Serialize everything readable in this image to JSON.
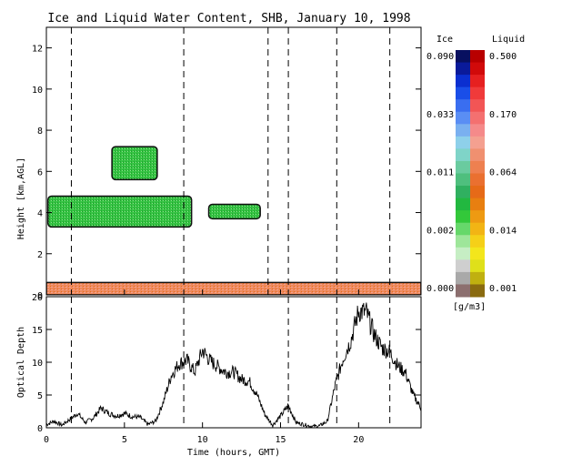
{
  "chart_data": [
    {
      "id": "water-content-panel",
      "type": "heatmap",
      "title": "Ice and Liquid Water Content, SHB, January 10, 1998",
      "xlabel": "",
      "ylabel": "Height [km,AGL]",
      "xlim": [
        0,
        24
      ],
      "ylim": [
        0,
        13
      ],
      "yticks": [
        "0",
        "2",
        "4",
        "6",
        "8",
        "10",
        "12"
      ],
      "unit_label": "[g/m3]",
      "colorbars": [
        {
          "name": "Ice",
          "tick_labels": [
            "0.090",
            "0.033",
            "0.011",
            "0.002",
            "0.000"
          ],
          "colors": [
            "#081060",
            "#0a1a9a",
            "#0b2fd0",
            "#1a4ee8",
            "#3a6ef0",
            "#5a8ef4",
            "#7ab0f0",
            "#8ed0ea",
            "#7fd4c8",
            "#6acb9f",
            "#4fbf7e",
            "#30b060",
            "#22b840",
            "#33c83a",
            "#66d86a",
            "#9ee69a",
            "#c6eec4",
            "#cfcfcf",
            "#a9a9a9",
            "#8c6f6f"
          ]
        },
        {
          "name": "Liquid",
          "tick_labels": [
            "0.500",
            "0.170",
            "0.064",
            "0.014",
            "0.001"
          ],
          "colors": [
            "#b80000",
            "#d10a0a",
            "#e62020",
            "#f03a3a",
            "#f25555",
            "#f47070",
            "#f58a8a",
            "#f4a090",
            "#f09070",
            "#ee8050",
            "#ea7030",
            "#e66a18",
            "#e87f10",
            "#ee9a12",
            "#f2b414",
            "#f5d018",
            "#f3e61c",
            "#dfe01a",
            "#c0b010",
            "#8a6b10"
          ]
        }
      ],
      "cloud_layers": [
        {
          "phase": "ice",
          "t_start": 0.1,
          "t_end": 9.3,
          "base_km": 3.3,
          "top_km": 4.8
        },
        {
          "phase": "ice",
          "t_start": 10.4,
          "t_end": 13.7,
          "base_km": 3.7,
          "top_km": 4.4
        },
        {
          "phase": "ice",
          "t_start": 4.2,
          "t_end": 7.1,
          "base_km": 5.6,
          "top_km": 7.2
        },
        {
          "phase": "liquid",
          "t_start": 0.0,
          "t_end": 24.0,
          "base_km": 0.0,
          "top_km": 0.6
        }
      ],
      "vertical_dashed_lines_hours": [
        1.6,
        8.8,
        14.2,
        15.5,
        18.6,
        22.0
      ]
    },
    {
      "id": "optical-depth-panel",
      "type": "line",
      "xlabel": "Time (hours, GMT)",
      "ylabel": "Optical Depth",
      "xlim": [
        0,
        24
      ],
      "ylim": [
        0,
        20
      ],
      "xticks": [
        "0",
        "5",
        "10",
        "15",
        "20"
      ],
      "yticks": [
        "0",
        "5",
        "10",
        "15",
        "20"
      ],
      "vertical_dashed_lines_hours": [
        1.6,
        8.8,
        15.5,
        18.6,
        22.0
      ],
      "series": [
        {
          "x": [
            0.0,
            0.5,
            1.0,
            1.5,
            2.0,
            2.5,
            3.0,
            3.5,
            4.0,
            4.5,
            5.0,
            5.5,
            6.0,
            6.5,
            7.0,
            7.5,
            8.0,
            8.5,
            9.0,
            9.5,
            10.0,
            10.5,
            11.0,
            11.5,
            12.0,
            12.5,
            13.0,
            13.5,
            14.0,
            14.5,
            15.0,
            15.5,
            16.0,
            16.5,
            17.0,
            17.5,
            18.0,
            18.5,
            19.0,
            19.5,
            20.0,
            20.5,
            21.0,
            21.5,
            22.0,
            22.5,
            23.0,
            23.5,
            24.0
          ],
          "values": [
            0.5,
            1.0,
            0.4,
            1.3,
            2.2,
            0.8,
            1.5,
            3.0,
            2.2,
            1.8,
            2.2,
            1.7,
            1.6,
            0.5,
            1.0,
            4.0,
            8.0,
            9.8,
            10.3,
            8.5,
            11.8,
            10.2,
            9.3,
            8.5,
            8.5,
            7.4,
            7.1,
            5.0,
            2.0,
            0.4,
            1.8,
            3.4,
            0.8,
            0.5,
            0.2,
            0.3,
            1.0,
            6.5,
            10.5,
            13.3,
            17.8,
            17.6,
            14.2,
            12.2,
            11.6,
            9.5,
            8.4,
            5.0,
            3.0
          ]
        }
      ]
    }
  ]
}
